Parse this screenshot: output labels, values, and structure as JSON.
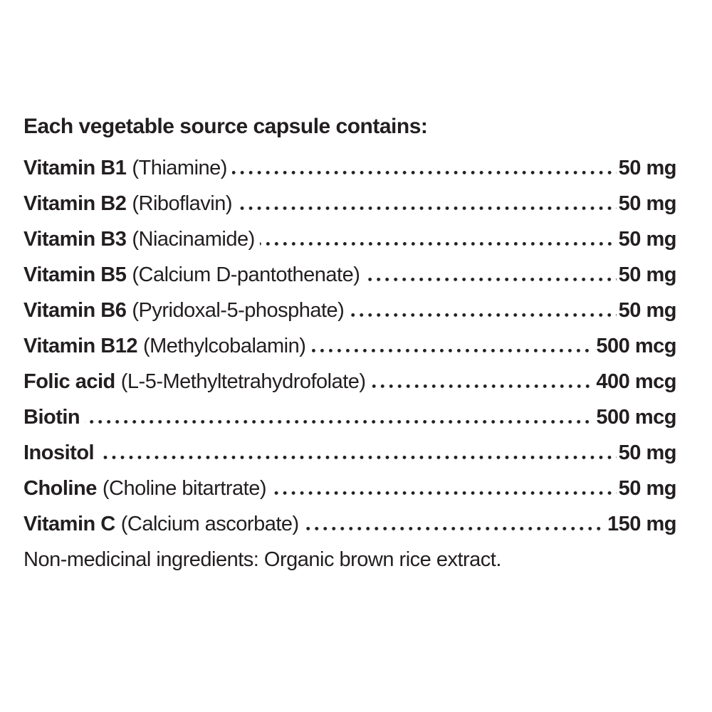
{
  "colors": {
    "text": "#231f20",
    "background": "#ffffff"
  },
  "header": "Each vegetable source capsule contains:",
  "rows": [
    {
      "name": "Vitamin B1",
      "form": "(Thiamine)",
      "amount": "50 mg"
    },
    {
      "name": "Vitamin B2",
      "form": "(Riboflavin)",
      "amount": "50 mg"
    },
    {
      "name": "Vitamin B3",
      "form": "(Niacinamide)",
      "amount": "50 mg"
    },
    {
      "name": "Vitamin B5",
      "form": "(Calcium D-pantothenate)",
      "amount": "50 mg"
    },
    {
      "name": "Vitamin B6",
      "form": "(Pyridoxal-5-phosphate)",
      "amount": "50 mg"
    },
    {
      "name": "Vitamin B12",
      "form": "(Methylcobalamin)",
      "amount": "500 mcg"
    },
    {
      "name": "Folic acid",
      "form": "(L-5-Methyltetrahydrofolate)",
      "amount": "400 mcg"
    },
    {
      "name": "Biotin",
      "form": "",
      "amount": "500 mcg"
    },
    {
      "name": "Inositol",
      "form": "",
      "amount": "50 mg"
    },
    {
      "name": "Choline",
      "form": "(Choline bitartrate)",
      "amount": "50 mg"
    },
    {
      "name": "Vitamin C",
      "form": "(Calcium ascorbate)",
      "amount": "150 mg"
    }
  ],
  "footer": "Non-medicinal ingredients: Organic brown rice extract."
}
